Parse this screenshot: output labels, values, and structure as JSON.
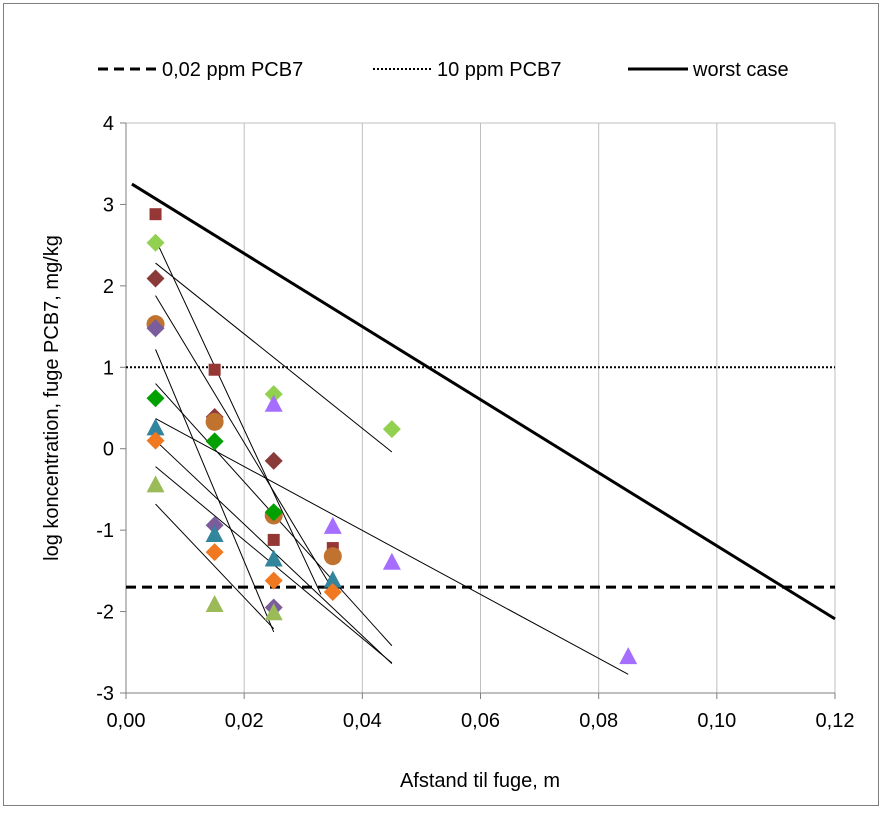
{
  "chart_data": {
    "type": "scatter",
    "title": "",
    "xlabel": "Afstand til fuge, m",
    "ylabel": "log koncentration, fuge PCB7,  mg/kg",
    "xlim": [
      0,
      0.12
    ],
    "ylim": [
      -3,
      4
    ],
    "x_ticks": [
      0,
      0.02,
      0.04,
      0.06,
      0.08,
      0.1,
      0.12
    ],
    "x_tick_labels": [
      "0,00",
      "0,02",
      "0,04",
      "0,06",
      "0,08",
      "0,10",
      "0,12"
    ],
    "y_ticks": [
      -3,
      -2,
      -1,
      0,
      1,
      2,
      3,
      4
    ],
    "y_tick_labels": [
      "-3",
      "-2",
      "-1",
      "0",
      "1",
      "2",
      "3",
      "4"
    ],
    "grid": "vertical",
    "legend_position": "top",
    "legend": [
      {
        "label": "0,02 ppm PCB7",
        "style": "dashed"
      },
      {
        "label": "10 ppm PCB7",
        "style": "dotted"
      },
      {
        "label": "worst case",
        "style": "solid"
      }
    ],
    "reference_lines": [
      {
        "name": "0,02 ppm PCB7",
        "style": "dashed",
        "y": -1.7
      },
      {
        "name": "10 ppm PCB7",
        "style": "dotted",
        "y": 1.0
      },
      {
        "name": "worst case",
        "style": "solid",
        "x": [
          0.001,
          0.12
        ],
        "y": [
          3.25,
          -2.09
        ]
      }
    ],
    "series": [
      {
        "marker": "square",
        "color": "#953735",
        "points": [
          [
            0.005,
            2.88
          ],
          [
            0.015,
            0.97
          ],
          [
            0.025,
            -1.12
          ],
          [
            0.035,
            -1.22
          ]
        ]
      },
      {
        "marker": "diamond",
        "color": "#92D050",
        "points": [
          [
            0.005,
            2.53
          ],
          [
            0.025,
            0.67
          ],
          [
            0.045,
            0.24
          ]
        ]
      },
      {
        "marker": "diamond",
        "color": "#8B3A3A",
        "points": [
          [
            0.005,
            2.09
          ],
          [
            0.015,
            0.39
          ],
          [
            0.025,
            -0.15
          ]
        ]
      },
      {
        "marker": "circle",
        "color": "#C0722F",
        "points": [
          [
            0.005,
            1.53
          ],
          [
            0.015,
            0.33
          ],
          [
            0.025,
            -0.82
          ],
          [
            0.035,
            -1.32
          ]
        ]
      },
      {
        "marker": "diamond",
        "color": "#7B5C9C",
        "points": [
          [
            0.005,
            1.48
          ],
          [
            0.015,
            -0.94
          ],
          [
            0.025,
            -1.95
          ]
        ]
      },
      {
        "marker": "diamond",
        "color": "#00A000",
        "points": [
          [
            0.005,
            0.62
          ],
          [
            0.015,
            0.09
          ],
          [
            0.025,
            -0.78
          ]
        ]
      },
      {
        "marker": "triangle",
        "color": "#31859C",
        "points": [
          [
            0.005,
            0.25
          ],
          [
            0.015,
            -1.06
          ],
          [
            0.025,
            -1.36
          ],
          [
            0.035,
            -1.62
          ]
        ]
      },
      {
        "marker": "diamond",
        "color": "#F07820",
        "points": [
          [
            0.005,
            0.1
          ],
          [
            0.015,
            -1.27
          ],
          [
            0.025,
            -1.62
          ],
          [
            0.035,
            -1.76
          ]
        ]
      },
      {
        "marker": "triangle",
        "color": "#9BBB59",
        "points": [
          [
            0.005,
            -0.45
          ],
          [
            0.015,
            -1.92
          ],
          [
            0.025,
            -2.02
          ]
        ]
      },
      {
        "marker": "triangle",
        "color": "#A66EFF",
        "points": [
          [
            0.025,
            0.54
          ],
          [
            0.035,
            -0.96
          ],
          [
            0.045,
            -1.4
          ],
          [
            0.085,
            -2.56
          ]
        ]
      }
    ],
    "trend_lines": [
      {
        "x": [
          0.005,
          0.033
        ],
        "y": [
          2.57,
          -1.79
        ]
      },
      {
        "x": [
          0.005,
          0.045
        ],
        "y": [
          2.28,
          -0.04
        ]
      },
      {
        "x": [
          0.005,
          0.035
        ],
        "y": [
          1.88,
          -1.73
        ]
      },
      {
        "x": [
          0.005,
          0.025
        ],
        "y": [
          1.22,
          -2.25
        ]
      },
      {
        "x": [
          0.005,
          0.045
        ],
        "y": [
          0.8,
          -2.42
        ]
      },
      {
        "x": [
          0.005,
          0.045
        ],
        "y": [
          0.1,
          -2.64
        ]
      },
      {
        "x": [
          0.005,
          0.085
        ],
        "y": [
          0.37,
          -2.77
        ]
      },
      {
        "x": [
          0.005,
          0.045
        ],
        "y": [
          -0.22,
          -2.63
        ]
      },
      {
        "x": [
          0.005,
          0.025
        ],
        "y": [
          -0.68,
          -2.21
        ]
      }
    ]
  }
}
